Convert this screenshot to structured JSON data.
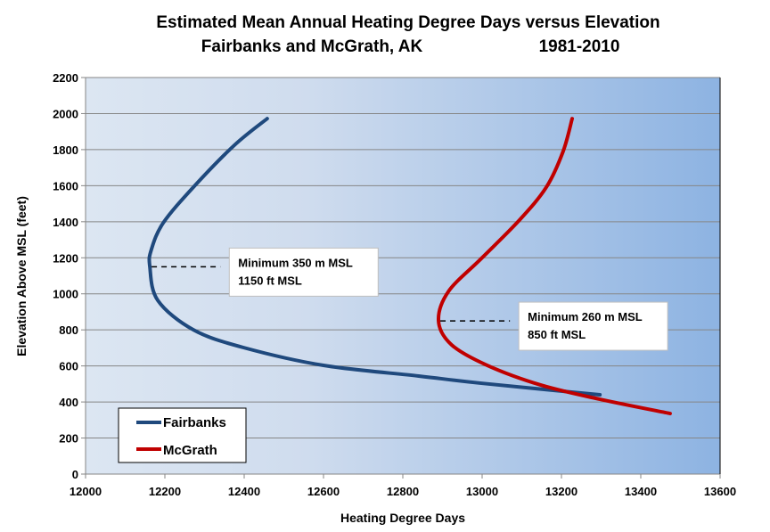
{
  "chart_data": {
    "type": "line",
    "title": [
      "Estimated Mean Annual Heating Degree Days versus Elevation",
      "Fairbanks and McGrath, AK",
      "1981-2010"
    ],
    "xlabel": "Heating Degree Days",
    "ylabel": "Elevation Above MSL (feet)",
    "xlim": [
      12000,
      13600
    ],
    "ylim": [
      0,
      2200
    ],
    "xticks": [
      12000,
      12200,
      12400,
      12600,
      12800,
      13000,
      13200,
      13400,
      13600
    ],
    "yticks": [
      0,
      200,
      400,
      600,
      800,
      1000,
      1200,
      1400,
      1600,
      1800,
      2000,
      2200
    ],
    "grid": "horizontal",
    "legend": "bottom-left",
    "series": [
      {
        "name": "Fairbanks",
        "color": "#1f497d",
        "points": [
          [
            13297,
            440
          ],
          [
            12998,
            504
          ],
          [
            12840,
            544
          ],
          [
            12600,
            603
          ],
          [
            12398,
            702
          ],
          [
            12272,
            800
          ],
          [
            12182,
            964
          ],
          [
            12162,
            1152
          ],
          [
            12166,
            1246
          ],
          [
            12196,
            1394
          ],
          [
            12272,
            1592
          ],
          [
            12375,
            1824
          ],
          [
            12458,
            1972
          ]
        ]
      },
      {
        "name": "McGrath",
        "color": "#c00000",
        "points": [
          [
            13474,
            336
          ],
          [
            13297,
            415
          ],
          [
            13148,
            494
          ],
          [
            13013,
            603
          ],
          [
            12923,
            717
          ],
          [
            12890,
            850
          ],
          [
            12915,
            1013
          ],
          [
            12998,
            1196
          ],
          [
            13094,
            1409
          ],
          [
            13162,
            1592
          ],
          [
            13204,
            1789
          ],
          [
            13227,
            1972
          ]
        ]
      }
    ],
    "annotations": [
      {
        "lines": [
          "Minimum 350 m MSL",
          "1150 ft MSL"
        ],
        "x": 12162,
        "y": 1150,
        "dash_to": 12340
      },
      {
        "lines": [
          "Minimum 260 m MSL",
          "850 ft MSL"
        ],
        "x": 12890,
        "y": 850,
        "dash_to": 13070
      }
    ],
    "background_gradient": [
      "#dce6f2",
      "#8db3e2"
    ]
  }
}
